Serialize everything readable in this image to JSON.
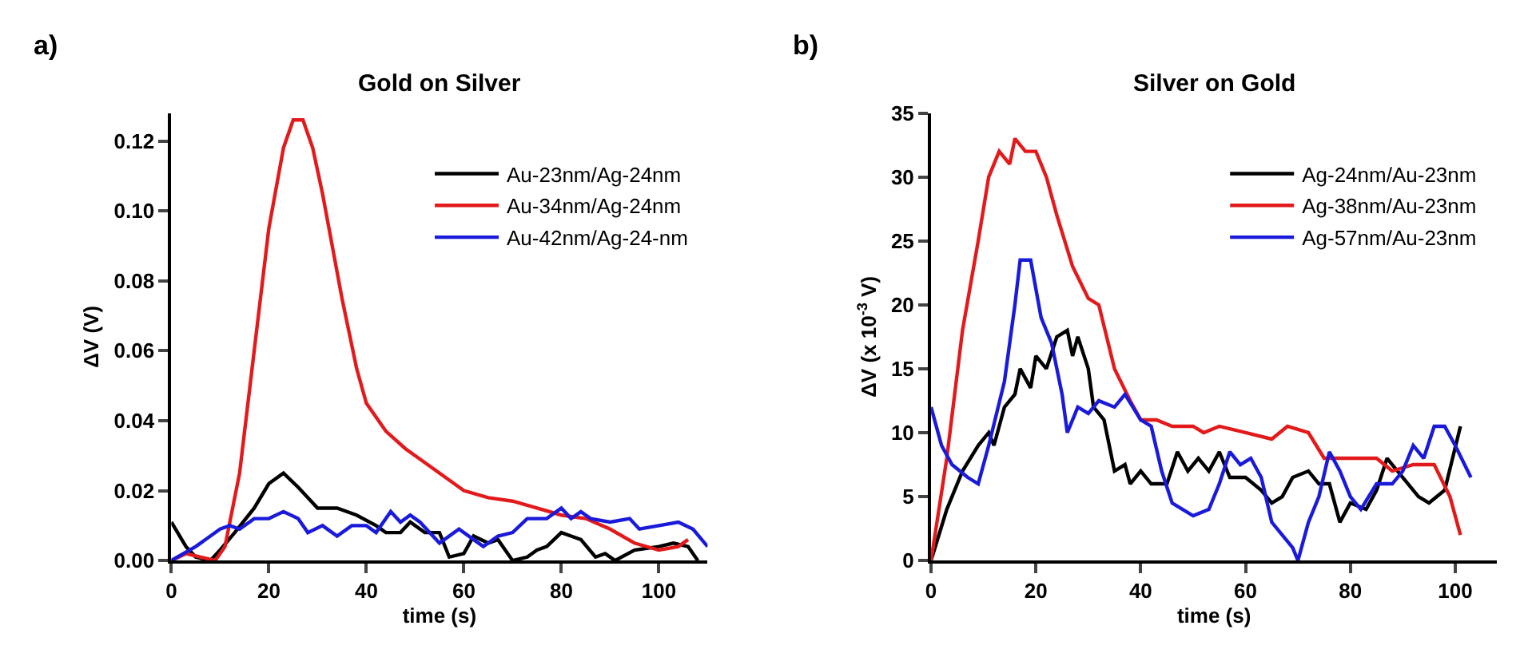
{
  "chart_data": [
    {
      "type": "line",
      "title": "Gold on Silver",
      "xlabel": "time (s)",
      "ylabel": "ΔV (V)",
      "annotations": [
        "a)"
      ],
      "xlim": [
        0,
        110
      ],
      "xticks": [
        0,
        20,
        40,
        60,
        80,
        100
      ],
      "ylim": [
        0,
        0.128
      ],
      "yticks": [
        {
          "value": 0,
          "label": "0.00"
        },
        {
          "value": 0.02,
          "label": "0.02"
        },
        {
          "value": 0.04,
          "label": "0.04"
        },
        {
          "value": 0.06,
          "label": "0.06"
        },
        {
          "value": 0.08,
          "label": "0.08"
        },
        {
          "value": 0.1,
          "label": "0.10"
        },
        {
          "value": 0.12,
          "label": "0.12"
        }
      ],
      "grid": false,
      "legend": "top right",
      "series": [
        {
          "name": "Au-23nm/Ag-24nm",
          "color": "#000000",
          "x": [
            0,
            3,
            5,
            8,
            10,
            13,
            17,
            20,
            23,
            26,
            30,
            34,
            38,
            42,
            44,
            47,
            49,
            52,
            55,
            57,
            60,
            62,
            65,
            67,
            70,
            73,
            75,
            77,
            80,
            82,
            84,
            87,
            89,
            91,
            95,
            100,
            103,
            106,
            108
          ],
          "values": [
            0.011,
            0.004,
            0.001,
            0,
            0.003,
            0.008,
            0.015,
            0.022,
            0.025,
            0.021,
            0.015,
            0.015,
            0.013,
            0.01,
            0.008,
            0.008,
            0.011,
            0.008,
            0.008,
            0.001,
            0.002,
            0.007,
            0.005,
            0.006,
            0,
            0.001,
            0.003,
            0.004,
            0.008,
            0.007,
            0.006,
            0.001,
            0.002,
            0,
            0.003,
            0.004,
            0.005,
            0.004,
            0
          ]
        },
        {
          "name": "Au-34nm/Ag-24nm",
          "color": "#e31a1c",
          "x": [
            0,
            3,
            6,
            9,
            11,
            14,
            17,
            20,
            23,
            25,
            27,
            29,
            31,
            33,
            35,
            38,
            40,
            44,
            48,
            52,
            56,
            60,
            65,
            70,
            75,
            80,
            85,
            90,
            95,
            100,
            104,
            106
          ],
          "values": [
            0,
            0.002,
            0.001,
            0,
            0.004,
            0.025,
            0.06,
            0.095,
            0.118,
            0.126,
            0.126,
            0.118,
            0.105,
            0.09,
            0.075,
            0.055,
            0.045,
            0.037,
            0.032,
            0.028,
            0.024,
            0.02,
            0.018,
            0.017,
            0.015,
            0.013,
            0.012,
            0.009,
            0.005,
            0.003,
            0.004,
            0.006
          ]
        },
        {
          "name": "Au-42nm/Ag-24-nm",
          "color": "#1a1adb",
          "x": [
            0,
            5,
            10,
            12,
            14,
            17,
            20,
            23,
            26,
            28,
            31,
            34,
            37,
            40,
            42,
            45,
            47,
            49,
            51,
            55,
            59,
            62,
            64,
            67,
            70,
            73,
            77,
            80,
            82,
            84,
            86,
            90,
            94,
            96,
            100,
            104,
            107,
            110
          ],
          "values": [
            0,
            0.004,
            0.009,
            0.01,
            0.009,
            0.012,
            0.012,
            0.014,
            0.012,
            0.008,
            0.01,
            0.007,
            0.01,
            0.01,
            0.008,
            0.014,
            0.011,
            0.013,
            0.011,
            0.005,
            0.009,
            0.006,
            0.004,
            0.007,
            0.008,
            0.012,
            0.012,
            0.015,
            0.012,
            0.014,
            0.012,
            0.011,
            0.012,
            0.009,
            0.01,
            0.011,
            0.009,
            0.004
          ]
        }
      ]
    },
    {
      "type": "line",
      "title": "Silver on Gold",
      "xlabel": "time (s)",
      "ylabel": "ΔV (x 10$^{-3}$ V)",
      "annotations": [
        "b)"
      ],
      "xlim": [
        0,
        108
      ],
      "xticks": [
        0,
        20,
        40,
        60,
        80,
        100
      ],
      "ylim": [
        0,
        35
      ],
      "yticks": [
        0,
        5,
        10,
        15,
        20,
        25,
        30,
        35
      ],
      "grid": false,
      "legend": "top right",
      "series": [
        {
          "name": "Ag-24nm/Au-23nm",
          "color": "#000000",
          "x": [
            0,
            3,
            6,
            9,
            11,
            12,
            14,
            16,
            17,
            19,
            20,
            22,
            24,
            26,
            27,
            28,
            30,
            31,
            33,
            35,
            37,
            38,
            40,
            42,
            45,
            47,
            49,
            51,
            53,
            55,
            57,
            60,
            63,
            65,
            67,
            69,
            72,
            74,
            76,
            78,
            80,
            83,
            85,
            87,
            89,
            91,
            93,
            95,
            98,
            101
          ],
          "values": [
            0,
            4,
            7,
            9,
            10,
            9,
            12,
            13,
            15,
            13.5,
            16,
            15,
            17.5,
            18,
            16,
            17.5,
            15,
            12,
            11,
            7,
            7.5,
            6,
            7,
            6,
            6,
            8.5,
            7,
            8,
            7,
            8.5,
            6.5,
            6.5,
            5.5,
            4.5,
            5,
            6.5,
            7,
            6,
            6,
            3,
            4.5,
            4,
            5.5,
            8,
            7,
            6,
            5,
            4.5,
            5.5,
            10.5
          ]
        },
        {
          "name": "Ag-38nm/Au-23nm",
          "color": "#e31a1c",
          "x": [
            0,
            3,
            6,
            9,
            11,
            13,
            15,
            16,
            18,
            20,
            22,
            24,
            27,
            30,
            32,
            35,
            38,
            40,
            43,
            46,
            50,
            52,
            55,
            60,
            65,
            68,
            72,
            75,
            80,
            85,
            88,
            92,
            96,
            99,
            101
          ],
          "values": [
            0,
            8,
            18,
            25,
            30,
            32,
            31,
            33,
            32,
            32,
            30,
            27,
            23,
            20.5,
            20,
            15,
            12.5,
            11,
            11,
            10.5,
            10.5,
            10,
            10.5,
            10,
            9.5,
            10.5,
            10,
            8,
            8,
            8,
            7,
            7.5,
            7.5,
            5,
            2
          ]
        },
        {
          "name": "Ag-57nm/Au-23nm",
          "color": "#1a1adb",
          "x": [
            0,
            2,
            4,
            7,
            9,
            11,
            14,
            16,
            17,
            19,
            21,
            23,
            25,
            26,
            28,
            30,
            32,
            35,
            37,
            40,
            42,
            44,
            46,
            48,
            50,
            53,
            55,
            57,
            59,
            61,
            63,
            65,
            67,
            69,
            70,
            72,
            74,
            76,
            78,
            80,
            82,
            85,
            88,
            90,
            92,
            94,
            96,
            98,
            100,
            103
          ],
          "values": [
            12,
            9,
            7.5,
            6.5,
            6,
            9,
            14,
            20,
            23.5,
            23.5,
            19,
            17,
            13,
            10,
            12,
            11.5,
            12.5,
            12,
            13,
            11,
            10.5,
            7,
            4.5,
            4,
            3.5,
            4,
            6,
            8.5,
            7.5,
            8,
            6.5,
            3,
            2,
            1,
            0,
            3,
            5,
            8.5,
            7,
            5,
            4,
            6,
            6,
            7,
            9,
            8,
            10.5,
            10.5,
            9,
            6.5
          ]
        }
      ]
    }
  ]
}
